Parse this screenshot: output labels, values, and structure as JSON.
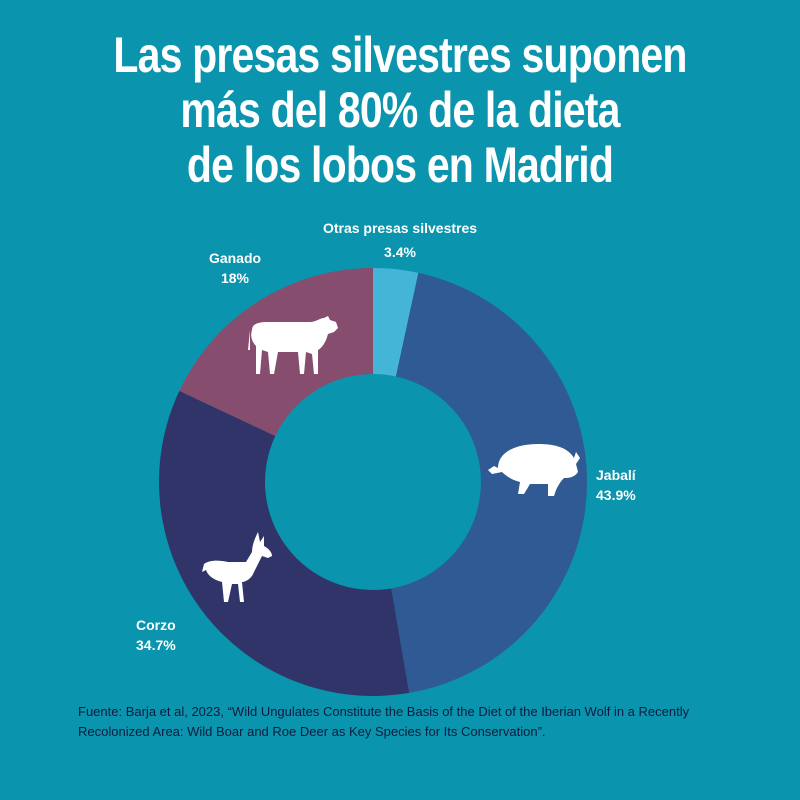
{
  "title_lines": [
    "Las presas silvestres suponen",
    "más del 80% de la dieta",
    "de los lobos en Madrid"
  ],
  "colors": {
    "background": "#0a94ad",
    "title": "#ffffff",
    "source": "#0f1c3f"
  },
  "chart_data": {
    "type": "pie",
    "variant": "donut",
    "categories": [
      "Otras presas silvestres",
      "Jabalí",
      "Corzo",
      "Ganado"
    ],
    "values": [
      3.4,
      43.9,
      34.7,
      18
    ],
    "value_labels": [
      "3.4%",
      "43.9%",
      "34.7%",
      "18%"
    ],
    "colors": [
      "#44b5d6",
      "#2f5a94",
      "#303469",
      "#864d6e"
    ],
    "icons": [
      null,
      "wild-boar-icon",
      "roe-deer-icon",
      "cow-icon"
    ]
  },
  "source": "Fuente: Barja et al, 2023, “Wild Ungulates Constitute the Basis of the Diet of the Iberian Wolf in a Recently Recolonized Area: Wild Boar and Roe Deer as Key Species for Its Conservation”."
}
